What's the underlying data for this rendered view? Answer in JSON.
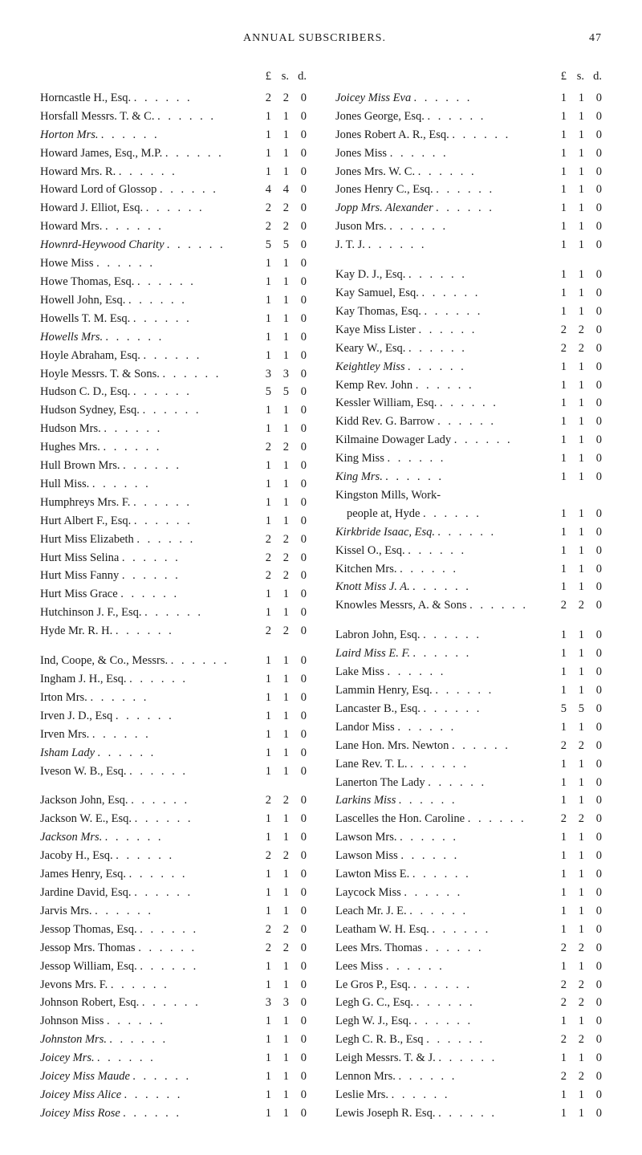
{
  "header": {
    "running_title": "ANNUAL SUBSCRIBERS.",
    "page_number": "47"
  },
  "money_labels": [
    "£",
    "s.",
    "d."
  ],
  "columns": [
    {
      "rows": [
        {
          "name": "Horncastle H., Esq.",
          "l": "2",
          "s": "2",
          "d": "0"
        },
        {
          "name": "Horsfall Messrs. T. & C.",
          "l": "1",
          "s": "1",
          "d": "0"
        },
        {
          "name": "Horton Mrs.",
          "l": "1",
          "s": "1",
          "d": "0",
          "ital": true
        },
        {
          "name": "Howard James, Esq., M.P.",
          "l": "1",
          "s": "1",
          "d": "0"
        },
        {
          "name": "Howard Mrs. R.",
          "l": "1",
          "s": "1",
          "d": "0"
        },
        {
          "name": "Howard Lord of Glossop",
          "l": "4",
          "s": "4",
          "d": "0"
        },
        {
          "name": "Howard J. Elliot, Esq.",
          "l": "2",
          "s": "2",
          "d": "0"
        },
        {
          "name": "Howard Mrs.",
          "l": "2",
          "s": "2",
          "d": "0"
        },
        {
          "name": "Hownrd-Heywood Charity",
          "l": "5",
          "s": "5",
          "d": "0",
          "ital": true
        },
        {
          "name": "Howe Miss",
          "l": "1",
          "s": "1",
          "d": "0"
        },
        {
          "name": "Howe Thomas, Esq.",
          "l": "1",
          "s": "1",
          "d": "0"
        },
        {
          "name": "Howell John, Esq.",
          "l": "1",
          "s": "1",
          "d": "0"
        },
        {
          "name": "Howells T. M. Esq.",
          "l": "1",
          "s": "1",
          "d": "0"
        },
        {
          "name": "Howells Mrs.",
          "l": "1",
          "s": "1",
          "d": "0",
          "ital": true
        },
        {
          "name": "Hoyle Abraham, Esq.",
          "l": "1",
          "s": "1",
          "d": "0"
        },
        {
          "name": "Hoyle Messrs. T. & Sons.",
          "l": "3",
          "s": "3",
          "d": "0"
        },
        {
          "name": "Hudson C. D., Esq.",
          "l": "5",
          "s": "5",
          "d": "0"
        },
        {
          "name": "Hudson Sydney, Esq.",
          "l": "1",
          "s": "1",
          "d": "0"
        },
        {
          "name": "Hudson Mrs.",
          "l": "1",
          "s": "1",
          "d": "0"
        },
        {
          "name": "Hughes Mrs.",
          "l": "2",
          "s": "2",
          "d": "0"
        },
        {
          "name": "Hull Brown Mrs.",
          "l": "1",
          "s": "1",
          "d": "0"
        },
        {
          "name": "Hull Miss.",
          "l": "1",
          "s": "1",
          "d": "0"
        },
        {
          "name": "Humphreys Mrs. F.",
          "l": "1",
          "s": "1",
          "d": "0"
        },
        {
          "name": "Hurt Albert F., Esq.",
          "l": "1",
          "s": "1",
          "d": "0"
        },
        {
          "name": "Hurt Miss Elizabeth",
          "l": "2",
          "s": "2",
          "d": "0"
        },
        {
          "name": "Hurt Miss Selina",
          "l": "2",
          "s": "2",
          "d": "0"
        },
        {
          "name": "Hurt Miss Fanny",
          "l": "2",
          "s": "2",
          "d": "0"
        },
        {
          "name": "Hurt Miss Grace",
          "l": "1",
          "s": "1",
          "d": "0"
        },
        {
          "name": "Hutchinson J. F., Esq.",
          "l": "1",
          "s": "1",
          "d": "0"
        },
        {
          "name": "Hyde Mr. R. H.",
          "l": "2",
          "s": "2",
          "d": "0"
        },
        {
          "gap": true
        },
        {
          "name": "Ind, Coope, & Co., Messrs.",
          "l": "1",
          "s": "1",
          "d": "0"
        },
        {
          "name": "Ingham J. H., Esq.",
          "l": "1",
          "s": "1",
          "d": "0"
        },
        {
          "name": "Irton Mrs.",
          "l": "1",
          "s": "1",
          "d": "0"
        },
        {
          "name": "Irven J. D., Esq",
          "l": "1",
          "s": "1",
          "d": "0"
        },
        {
          "name": "Irven Mrs.",
          "l": "1",
          "s": "1",
          "d": "0"
        },
        {
          "name": "Isham Lady",
          "l": "1",
          "s": "1",
          "d": "0",
          "ital": true
        },
        {
          "name": "Iveson W. B., Esq.",
          "l": "1",
          "s": "1",
          "d": "0"
        },
        {
          "gap": true
        },
        {
          "name": "Jackson John, Esq.",
          "l": "2",
          "s": "2",
          "d": "0"
        },
        {
          "name": "Jackson W. E., Esq.",
          "l": "1",
          "s": "1",
          "d": "0"
        },
        {
          "name": "Jackson Mrs.",
          "l": "1",
          "s": "1",
          "d": "0",
          "ital": true
        },
        {
          "name": "Jacoby H., Esq.",
          "l": "2",
          "s": "2",
          "d": "0"
        },
        {
          "name": "James Henry, Esq.",
          "l": "1",
          "s": "1",
          "d": "0"
        },
        {
          "name": "Jardine David, Esq.",
          "l": "1",
          "s": "1",
          "d": "0"
        },
        {
          "name": "Jarvis Mrs.",
          "l": "1",
          "s": "1",
          "d": "0"
        },
        {
          "name": "Jessop Thomas, Esq.",
          "l": "2",
          "s": "2",
          "d": "0"
        },
        {
          "name": "Jessop Mrs. Thomas",
          "l": "2",
          "s": "2",
          "d": "0"
        },
        {
          "name": "Jessop William, Esq.",
          "l": "1",
          "s": "1",
          "d": "0"
        },
        {
          "name": "Jevons Mrs. F.",
          "l": "1",
          "s": "1",
          "d": "0"
        },
        {
          "name": "Johnson Robert, Esq.",
          "l": "3",
          "s": "3",
          "d": "0"
        },
        {
          "name": "Johnson Miss",
          "l": "1",
          "s": "1",
          "d": "0"
        },
        {
          "name": "Johnston Mrs.",
          "l": "1",
          "s": "1",
          "d": "0",
          "ital": true
        },
        {
          "name": "Joicey Mrs.",
          "l": "1",
          "s": "1",
          "d": "0",
          "ital": true
        },
        {
          "name": "Joicey Miss Maude",
          "l": "1",
          "s": "1",
          "d": "0",
          "ital": true
        },
        {
          "name": "Joicey Miss Alice",
          "l": "1",
          "s": "1",
          "d": "0",
          "ital": true
        },
        {
          "name": "Joicey Miss Rose",
          "l": "1",
          "s": "1",
          "d": "0",
          "ital": true
        }
      ]
    },
    {
      "rows": [
        {
          "name": "Joicey Miss Eva",
          "l": "1",
          "s": "1",
          "d": "0",
          "ital": true
        },
        {
          "name": "Jones George, Esq.",
          "l": "1",
          "s": "1",
          "d": "0"
        },
        {
          "name": "Jones Robert A. R., Esq.",
          "l": "1",
          "s": "1",
          "d": "0"
        },
        {
          "name": "Jones Miss",
          "l": "1",
          "s": "1",
          "d": "0"
        },
        {
          "name": "Jones Mrs. W. C.",
          "l": "1",
          "s": "1",
          "d": "0"
        },
        {
          "name": "Jones Henry C., Esq.",
          "l": "1",
          "s": "1",
          "d": "0"
        },
        {
          "name": "Jopp Mrs. Alexander",
          "l": "1",
          "s": "1",
          "d": "0",
          "ital": true
        },
        {
          "name": "Juson Mrs.",
          "l": "1",
          "s": "1",
          "d": "0"
        },
        {
          "name": "J. T. J.",
          "l": "1",
          "s": "1",
          "d": "0"
        },
        {
          "gap": true
        },
        {
          "name": "Kay D. J., Esq.",
          "l": "1",
          "s": "1",
          "d": "0"
        },
        {
          "name": "Kay Samuel, Esq.",
          "l": "1",
          "s": "1",
          "d": "0"
        },
        {
          "name": "Kay Thomas, Esq.",
          "l": "1",
          "s": "1",
          "d": "0"
        },
        {
          "name": "Kaye Miss Lister",
          "l": "2",
          "s": "2",
          "d": "0"
        },
        {
          "name": "Keary W., Esq.",
          "l": "2",
          "s": "2",
          "d": "0"
        },
        {
          "name": "Keightley Miss",
          "l": "1",
          "s": "1",
          "d": "0",
          "ital": true
        },
        {
          "name": "Kemp Rev. John",
          "l": "1",
          "s": "1",
          "d": "0"
        },
        {
          "name": "Kessler William, Esq.",
          "l": "1",
          "s": "1",
          "d": "0"
        },
        {
          "name": "Kidd Rev. G. Barrow",
          "l": "1",
          "s": "1",
          "d": "0"
        },
        {
          "name": "Kilmaine Dowager Lady",
          "l": "1",
          "s": "1",
          "d": "0"
        },
        {
          "name": "King Miss",
          "l": "1",
          "s": "1",
          "d": "0"
        },
        {
          "name": "King Mrs.",
          "l": "1",
          "s": "1",
          "d": "0",
          "ital": true
        },
        {
          "name": "Kingston Mills, Work-",
          "nomoney": true
        },
        {
          "name": "people at, Hyde",
          "l": "1",
          "s": "1",
          "d": "0",
          "indent": true
        },
        {
          "name": "Kirkbride Isaac, Esq.",
          "l": "1",
          "s": "1",
          "d": "0",
          "ital": true
        },
        {
          "name": "Kissel O., Esq.",
          "l": "1",
          "s": "1",
          "d": "0"
        },
        {
          "name": "Kitchen Mrs.",
          "l": "1",
          "s": "1",
          "d": "0"
        },
        {
          "name": "Knott Miss J. A.",
          "l": "1",
          "s": "1",
          "d": "0",
          "ital": true
        },
        {
          "name": "Knowles Messrs, A. & Sons",
          "l": "2",
          "s": "2",
          "d": "0"
        },
        {
          "gap": true
        },
        {
          "name": "Labron John, Esq.",
          "l": "1",
          "s": "1",
          "d": "0"
        },
        {
          "name": "Laird Miss E. F.",
          "l": "1",
          "s": "1",
          "d": "0",
          "ital": true
        },
        {
          "name": "Lake Miss",
          "l": "1",
          "s": "1",
          "d": "0"
        },
        {
          "name": "Lammin Henry, Esq.",
          "l": "1",
          "s": "1",
          "d": "0"
        },
        {
          "name": "Lancaster B., Esq.",
          "l": "5",
          "s": "5",
          "d": "0"
        },
        {
          "name": "Landor Miss",
          "l": "1",
          "s": "1",
          "d": "0"
        },
        {
          "name": "Lane Hon. Mrs. Newton",
          "l": "2",
          "s": "2",
          "d": "0"
        },
        {
          "name": "Lane Rev. T. L.",
          "l": "1",
          "s": "1",
          "d": "0"
        },
        {
          "name": "Lanerton The Lady",
          "l": "1",
          "s": "1",
          "d": "0"
        },
        {
          "name": "Larkins Miss",
          "l": "1",
          "s": "1",
          "d": "0",
          "ital": true
        },
        {
          "name": "Lascelles the Hon. Caroline",
          "l": "2",
          "s": "2",
          "d": "0"
        },
        {
          "name": "Lawson Mrs.",
          "l": "1",
          "s": "1",
          "d": "0"
        },
        {
          "name": "Lawson Miss",
          "l": "1",
          "s": "1",
          "d": "0"
        },
        {
          "name": "Lawton Miss E.",
          "l": "1",
          "s": "1",
          "d": "0"
        },
        {
          "name": "Laycock Miss",
          "l": "1",
          "s": "1",
          "d": "0"
        },
        {
          "name": "Leach Mr. J. E.",
          "l": "1",
          "s": "1",
          "d": "0"
        },
        {
          "name": "Leatham W. H. Esq.",
          "l": "1",
          "s": "1",
          "d": "0"
        },
        {
          "name": "Lees Mrs. Thomas",
          "l": "2",
          "s": "2",
          "d": "0"
        },
        {
          "name": "Lees Miss",
          "l": "1",
          "s": "1",
          "d": "0"
        },
        {
          "name": "Le Gros P., Esq.",
          "l": "2",
          "s": "2",
          "d": "0"
        },
        {
          "name": "Legh G. C., Esq.",
          "l": "2",
          "s": "2",
          "d": "0"
        },
        {
          "name": "Legh W. J., Esq.",
          "l": "1",
          "s": "1",
          "d": "0"
        },
        {
          "name": "Legh C. R. B., Esq",
          "l": "2",
          "s": "2",
          "d": "0"
        },
        {
          "name": "Leigh Messrs. T. & J.",
          "l": "1",
          "s": "1",
          "d": "0"
        },
        {
          "name": "Lennon Mrs.",
          "l": "2",
          "s": "2",
          "d": "0"
        },
        {
          "name": "Leslie Mrs.",
          "l": "1",
          "s": "1",
          "d": "0"
        },
        {
          "name": "Lewis Joseph R. Esq.",
          "l": "1",
          "s": "1",
          "d": "0"
        }
      ]
    }
  ]
}
